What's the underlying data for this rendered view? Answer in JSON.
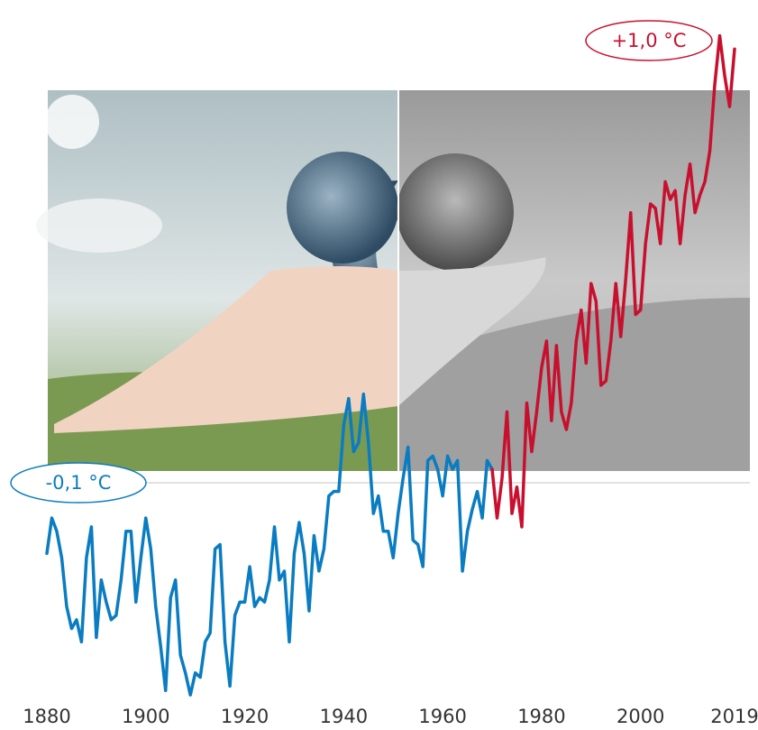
{
  "chart_data": {
    "type": "line",
    "xlim": [
      1880,
      2019
    ],
    "ylim": [
      -0.5,
      1.05
    ],
    "xticks": [
      1880,
      1900,
      1920,
      1940,
      1960,
      1980,
      2000,
      2019
    ],
    "series": [
      {
        "color": "#0a7cc1",
        "x": [
          1880,
          1881,
          1882,
          1883,
          1884,
          1885,
          1886,
          1887,
          1888,
          1889,
          1890,
          1891,
          1892,
          1893,
          1894,
          1895,
          1896,
          1897,
          1898,
          1899,
          1900,
          1901,
          1902,
          1903,
          1904,
          1905,
          1906,
          1907,
          1908,
          1909,
          1910,
          1911,
          1912,
          1913,
          1914,
          1915,
          1916,
          1917,
          1918,
          1919,
          1920,
          1921,
          1922,
          1923,
          1924,
          1925,
          1926,
          1927,
          1928,
          1929,
          1930,
          1931,
          1932,
          1933,
          1934,
          1935,
          1936,
          1937,
          1938,
          1939,
          1940,
          1941,
          1942,
          1943,
          1944,
          1945,
          1946,
          1947,
          1948,
          1949,
          1950,
          1951,
          1952,
          1953,
          1954,
          1955,
          1956,
          1957,
          1958,
          1959,
          1960,
          1961,
          1962,
          1963,
          1964,
          1965,
          1966,
          1967,
          1968,
          1969,
          1970
        ],
        "values": [
          -0.16,
          -0.08,
          -0.11,
          -0.17,
          -0.28,
          -0.33,
          -0.31,
          -0.36,
          -0.17,
          -0.1,
          -0.35,
          -0.22,
          -0.27,
          -0.31,
          -0.3,
          -0.22,
          -0.11,
          -0.11,
          -0.27,
          -0.17,
          -0.08,
          -0.15,
          -0.28,
          -0.37,
          -0.47,
          -0.26,
          -0.22,
          -0.39,
          -0.43,
          -0.48,
          -0.43,
          -0.44,
          -0.36,
          -0.34,
          -0.15,
          -0.14,
          -0.36,
          -0.46,
          -0.3,
          -0.27,
          -0.27,
          -0.19,
          -0.28,
          -0.26,
          -0.27,
          -0.22,
          -0.1,
          -0.22,
          -0.2,
          -0.36,
          -0.16,
          -0.09,
          -0.16,
          -0.29,
          -0.12,
          -0.2,
          -0.15,
          -0.03,
          -0.02,
          -0.02,
          0.13,
          0.19,
          0.07,
          0.09,
          0.2,
          0.09,
          -0.07,
          -0.03,
          -0.11,
          -0.11,
          -0.17,
          -0.07,
          0.01,
          0.08,
          -0.13,
          -0.14,
          -0.19,
          0.05,
          0.06,
          0.03,
          -0.03,
          0.06,
          0.03,
          0.05,
          -0.2,
          -0.11,
          -0.06,
          -0.02,
          -0.08,
          0.05,
          0.03
        ]
      },
      {
        "color": "#c8102e",
        "x": [
          1970,
          1971,
          1972,
          1973,
          1974,
          1975,
          1976,
          1977,
          1978,
          1979,
          1980,
          1981,
          1982,
          1983,
          1984,
          1985,
          1986,
          1987,
          1988,
          1989,
          1990,
          1991,
          1992,
          1993,
          1994,
          1995,
          1996,
          1997,
          1998,
          1999,
          2000,
          2001,
          2002,
          2003,
          2004,
          2005,
          2006,
          2007,
          2008,
          2009,
          2010,
          2011,
          2012,
          2013,
          2014,
          2015,
          2016,
          2017,
          2018,
          2019
        ],
        "values": [
          0.03,
          -0.08,
          0.01,
          0.16,
          -0.07,
          -0.01,
          -0.1,
          0.18,
          0.07,
          0.16,
          0.26,
          0.32,
          0.14,
          0.31,
          0.16,
          0.12,
          0.18,
          0.32,
          0.39,
          0.27,
          0.45,
          0.41,
          0.22,
          0.23,
          0.32,
          0.45,
          0.33,
          0.46,
          0.61,
          0.38,
          0.39,
          0.54,
          0.63,
          0.62,
          0.54,
          0.68,
          0.64,
          0.66,
          0.54,
          0.65,
          0.72,
          0.61,
          0.65,
          0.68,
          0.75,
          0.9,
          1.01,
          0.92,
          0.85,
          0.98
        ]
      }
    ],
    "annotations": [
      {
        "text": "-0,1 °C",
        "color": "#0a7cc1"
      },
      {
        "text": "+1,0 °C",
        "color": "#c8102e"
      }
    ]
  }
}
